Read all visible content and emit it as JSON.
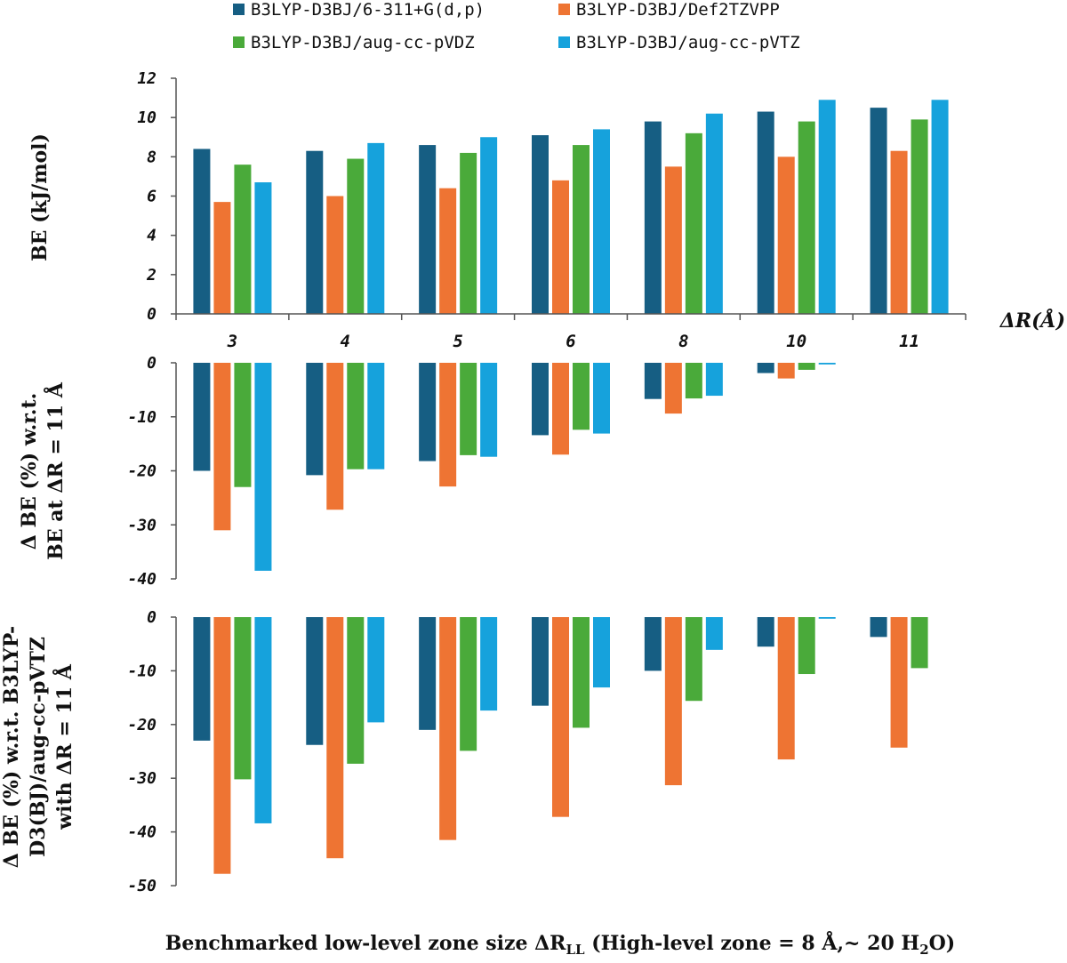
{
  "colors": {
    "s1": "#165e83",
    "s2": "#ee7433",
    "s3": "#4aaa3a",
    "s4": "#16a2dc",
    "axis": "#555555"
  },
  "legend": {
    "items": [
      "B3LYP-D3BJ/6-311+G(d,p)",
      "B3LYP-D3BJ/Def2TZVPP",
      "B3LYP-D3BJ/aug-cc-pVDZ",
      "B3LYP-D3BJ/aug-cc-pVTZ"
    ]
  },
  "axis_tag": "ΔR(Å)",
  "x_title": "Benchmarked low-level zone size ΔR",
  "x_title_sub": "LL",
  "x_title_rest": " (High-level zone = 8 Å,~ 20 H",
  "x_title_sub2": "2",
  "x_title_end": "O)",
  "chart_data": [
    {
      "type": "bar",
      "title": "",
      "ylabel": "BE (kJ/mol)",
      "xlabel": "ΔR(Å)",
      "categories": [
        "3",
        "4",
        "5",
        "6",
        "8",
        "10",
        "11"
      ],
      "ylim": [
        0,
        12
      ],
      "yticks": [
        0,
        2,
        4,
        6,
        8,
        10,
        12
      ],
      "series": [
        {
          "name": "B3LYP-D3BJ/6-311+G(d,p)",
          "values": [
            8.4,
            8.3,
            8.6,
            9.1,
            9.8,
            10.3,
            10.5
          ]
        },
        {
          "name": "B3LYP-D3BJ/Def2TZVPP",
          "values": [
            5.7,
            6.0,
            6.4,
            6.8,
            7.5,
            8.0,
            8.3
          ]
        },
        {
          "name": "B3LYP-D3BJ/aug-cc-pVDZ",
          "values": [
            7.6,
            7.9,
            8.2,
            8.6,
            9.2,
            9.8,
            9.9
          ]
        },
        {
          "name": "B3LYP-D3BJ/aug-cc-pVTZ",
          "values": [
            6.7,
            8.7,
            9.0,
            9.4,
            10.2,
            10.9,
            10.9
          ]
        }
      ]
    },
    {
      "type": "bar",
      "title": "",
      "ylabel_line1": "Δ BE (%) w.r.t.",
      "ylabel_line2": "BE at ΔR = 11 Å",
      "categories": [
        "3",
        "4",
        "5",
        "6",
        "8",
        "10",
        "11"
      ],
      "ylim": [
        -40,
        0
      ],
      "yticks": [
        0,
        -10,
        -20,
        -30,
        -40
      ],
      "series": [
        {
          "name": "B3LYP-D3BJ/6-311+G(d,p)",
          "values": [
            -20,
            -20.8,
            -18.2,
            -13.4,
            -6.7,
            -1.9,
            0
          ]
        },
        {
          "name": "B3LYP-D3BJ/Def2TZVPP",
          "values": [
            -31,
            -27.2,
            -22.9,
            -17,
            -9.4,
            -2.9,
            0
          ]
        },
        {
          "name": "B3LYP-D3BJ/aug-cc-pVDZ",
          "values": [
            -23,
            -19.7,
            -17.1,
            -12.4,
            -6.6,
            -1.3,
            0
          ]
        },
        {
          "name": "B3LYP-D3BJ/aug-cc-pVTZ",
          "values": [
            -38.5,
            -19.7,
            -17.4,
            -13.1,
            -6.1,
            -0.3,
            0
          ]
        }
      ]
    },
    {
      "type": "bar",
      "title": "",
      "ylabel_line1": "Δ BE (%) w.r.t. B3LYP-",
      "ylabel_line2": "D3(BJ)/aug-cc-pVTZ",
      "ylabel_line3": "with ΔR = 11 Å",
      "xlabel": "Benchmarked low-level zone size ΔRLL (High-level zone = 8 Å,~ 20 H2O)",
      "categories": [
        "3",
        "4",
        "5",
        "6",
        "8",
        "10",
        "11"
      ],
      "ylim": [
        -50,
        0
      ],
      "yticks": [
        0,
        -10,
        -20,
        -30,
        -40,
        -50
      ],
      "series": [
        {
          "name": "B3LYP-D3BJ/6-311+G(d,p)",
          "values": [
            -23,
            -23.8,
            -21,
            -16.5,
            -10,
            -5.5,
            -3.7
          ]
        },
        {
          "name": "B3LYP-D3BJ/Def2TZVPP",
          "values": [
            -47.8,
            -44.9,
            -41.5,
            -37.2,
            -31.3,
            -26.5,
            -24.3
          ]
        },
        {
          "name": "B3LYP-D3BJ/aug-cc-pVDZ",
          "values": [
            -30.2,
            -27.3,
            -24.9,
            -20.6,
            -15.6,
            -10.6,
            -9.5
          ]
        },
        {
          "name": "B3LYP-D3BJ/aug-cc-pVTZ",
          "values": [
            -38.4,
            -19.6,
            -17.4,
            -13.1,
            -6.1,
            -0.3,
            0
          ]
        }
      ]
    }
  ]
}
